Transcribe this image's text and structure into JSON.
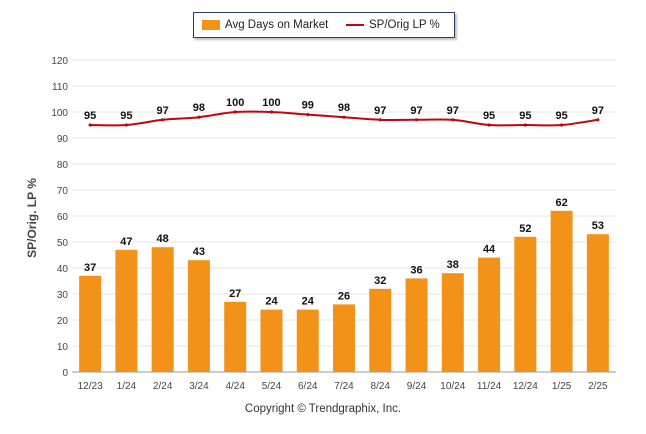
{
  "legend": {
    "bar_label": "Avg Days on Market",
    "line_label": "SP/Orig LP %"
  },
  "copyright": "Copyright © Trendgraphix, Inc.",
  "chart_data": {
    "type": "bar",
    "categories": [
      "12/23",
      "1/24",
      "2/24",
      "3/24",
      "4/24",
      "5/24",
      "6/24",
      "7/24",
      "8/24",
      "9/24",
      "10/24",
      "11/24",
      "12/24",
      "1/25",
      "2/25"
    ],
    "series": [
      {
        "name": "Avg Days on Market",
        "type": "bar",
        "values": [
          37,
          47,
          48,
          43,
          27,
          24,
          24,
          26,
          32,
          36,
          38,
          44,
          52,
          62,
          53
        ]
      },
      {
        "name": "SP/Orig LP %",
        "type": "line",
        "values": [
          95,
          95,
          97,
          98,
          100,
          100,
          99,
          98,
          97,
          97,
          97,
          95,
          95,
          95,
          97
        ]
      }
    ],
    "ylabel": "SP/Orig. LP %",
    "ylim": [
      0,
      120
    ],
    "yticks": [
      0,
      10,
      20,
      30,
      40,
      50,
      60,
      70,
      80,
      90,
      100,
      110,
      120
    ],
    "grid": true,
    "legend_position": "top-center",
    "colors": {
      "bar": "#f29219",
      "line": "#c0050f"
    }
  }
}
